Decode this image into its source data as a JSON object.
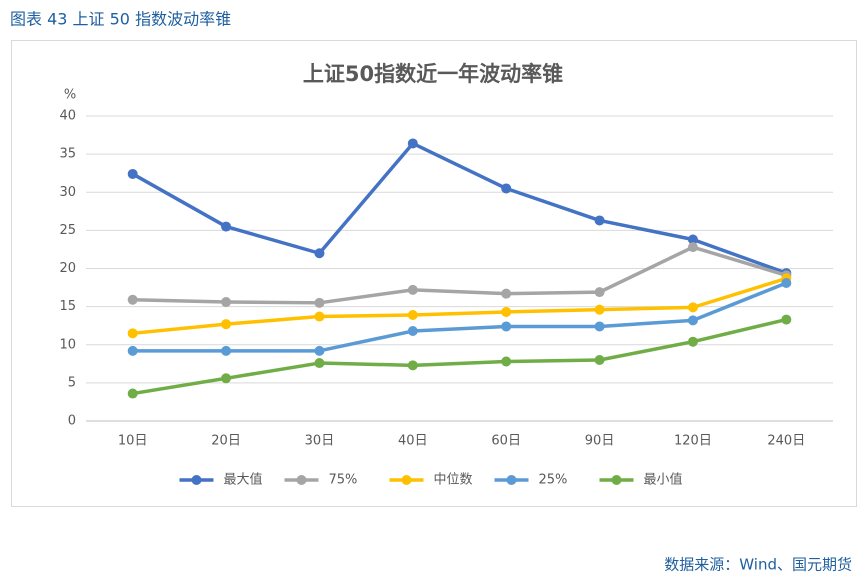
{
  "header": "图表 43 上证 50 指数波动率锥",
  "source": "数据来源：Wind、国元期货",
  "chart_data": {
    "type": "line",
    "title": "上证50指数近一年波动率锥",
    "ylabel": "%",
    "categories": [
      "10日",
      "20日",
      "30日",
      "40日",
      "60日",
      "90日",
      "120日",
      "240日"
    ],
    "series": [
      {
        "name": "最大值",
        "color": "#4472c4",
        "values": [
          32.4,
          25.5,
          22.0,
          36.4,
          30.5,
          26.3,
          23.8,
          19.4
        ]
      },
      {
        "name": "75%",
        "color": "#a5a5a5",
        "values": [
          15.9,
          15.6,
          15.5,
          17.2,
          16.7,
          16.9,
          22.8,
          19.1
        ]
      },
      {
        "name": "中位数",
        "color": "#ffc000",
        "values": [
          11.5,
          12.7,
          13.7,
          13.9,
          14.3,
          14.6,
          14.9,
          18.7
        ]
      },
      {
        "name": "25%",
        "color": "#5b9bd5",
        "values": [
          9.2,
          9.2,
          9.2,
          11.8,
          12.4,
          12.4,
          13.2,
          18.1
        ]
      },
      {
        "name": "最小值",
        "color": "#70ad47",
        "values": [
          3.6,
          5.6,
          7.6,
          7.3,
          7.8,
          8.0,
          10.4,
          13.3
        ]
      }
    ],
    "ylim": [
      0,
      40
    ],
    "yticks": [
      0,
      5,
      10,
      15,
      20,
      25,
      30,
      35,
      40
    ],
    "grid": true,
    "legend": "bottom"
  }
}
